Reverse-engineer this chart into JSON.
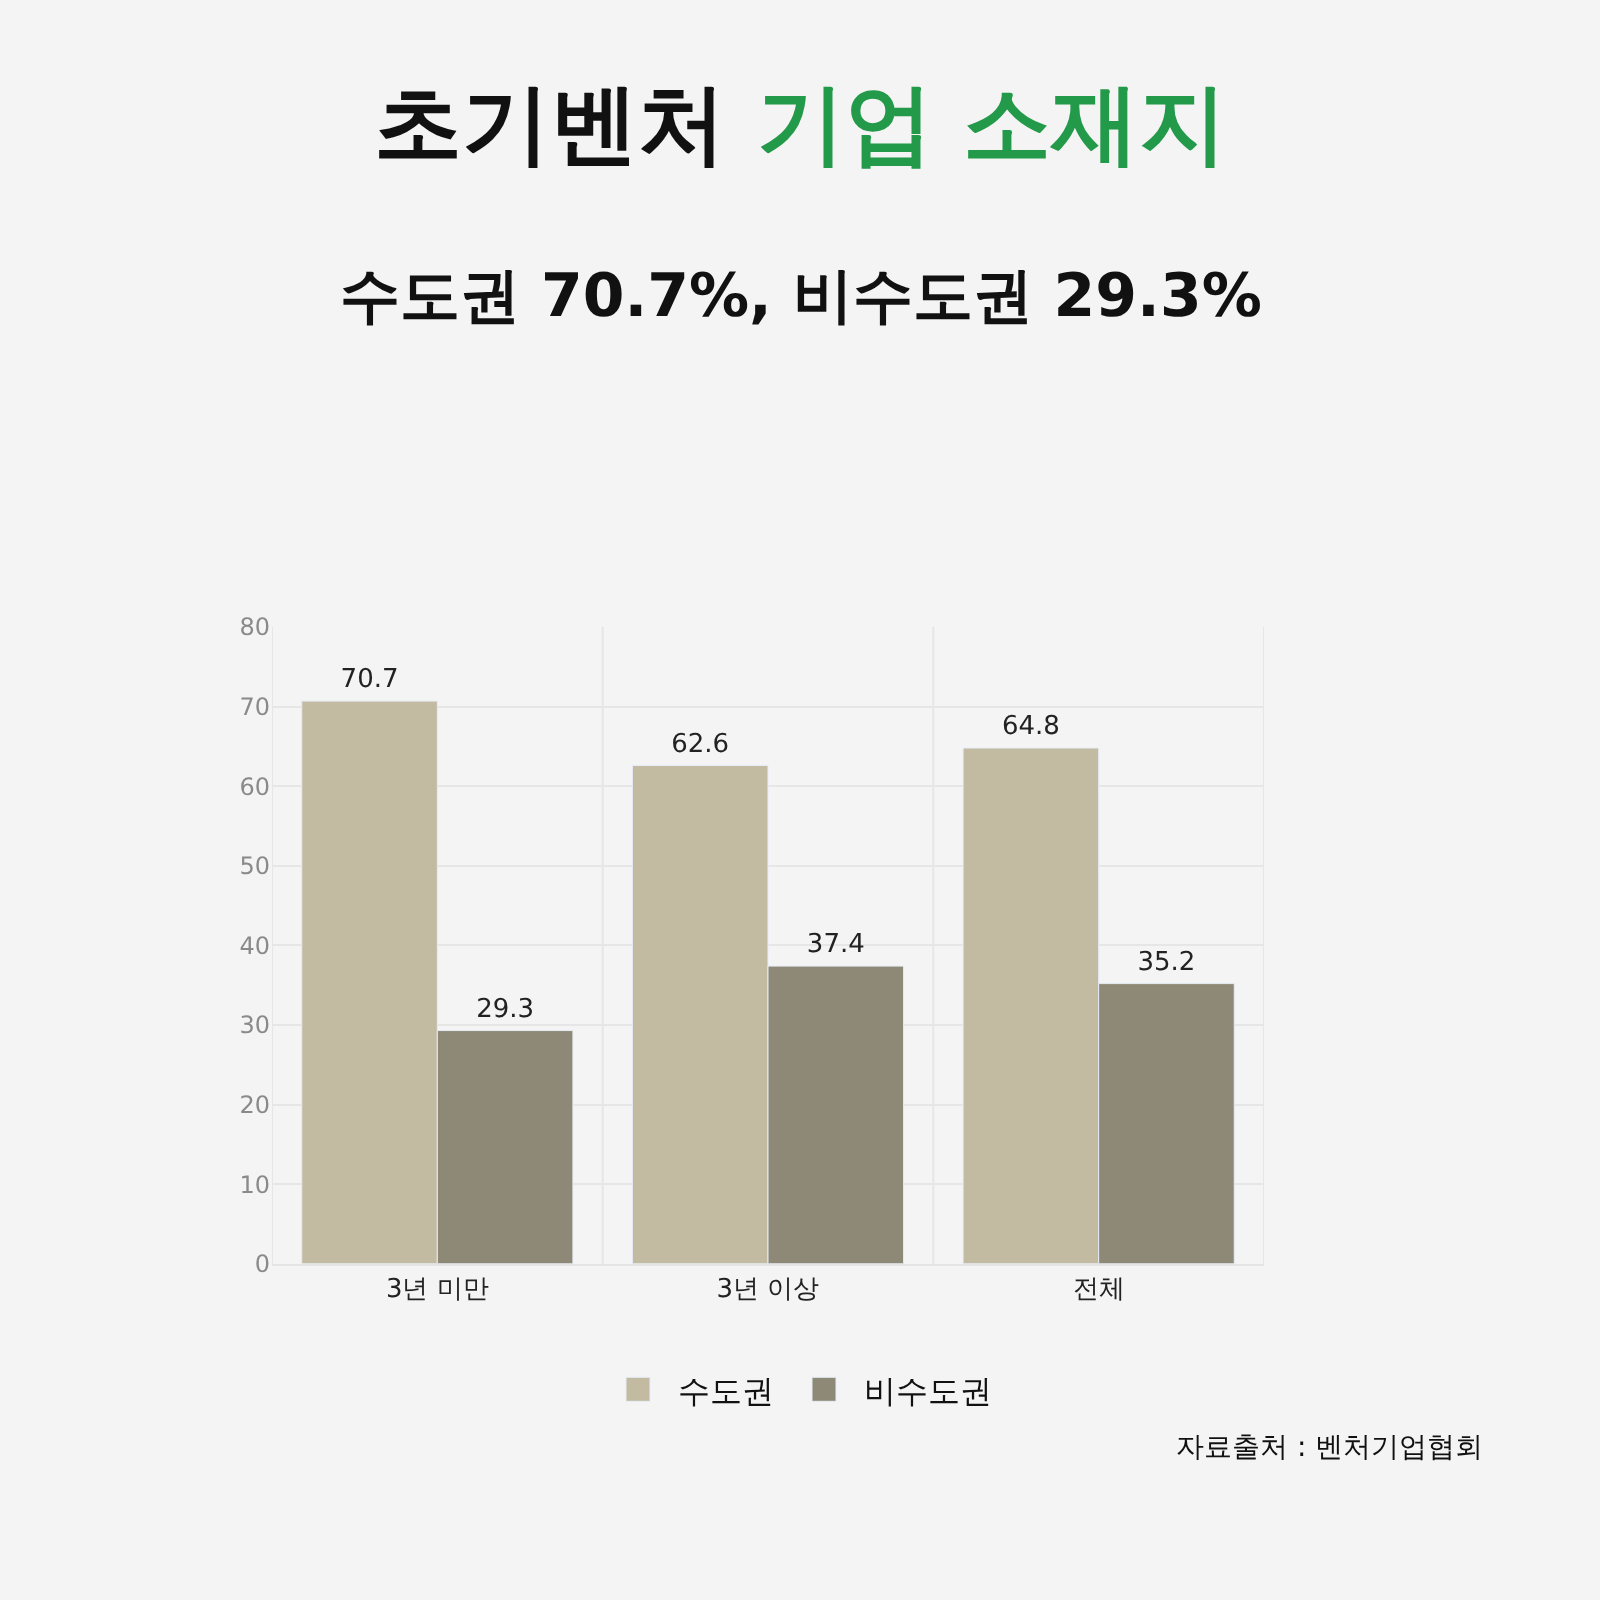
{
  "chart_data": {
    "type": "bar",
    "title": "초기벤처 기업 소재지",
    "subtitle": "수도권 70.7%, 비수도권 29.3%",
    "categories": [
      "3년 미만",
      "3년 이상",
      "전체"
    ],
    "series": [
      {
        "name": "수도권",
        "color": "#c3baa2",
        "values": [
          70.7,
          62.6,
          64.8
        ]
      },
      {
        "name": "비수도권",
        "color": "#8e8977",
        "values": [
          29.3,
          37.4,
          35.2
        ]
      }
    ],
    "ylim": [
      0,
      80
    ],
    "yticks": [
      0,
      10,
      20,
      30,
      40,
      50,
      60,
      70,
      80
    ],
    "grid": true,
    "legend": "bottom",
    "data_labels": true,
    "annotations": [
      "자료출처 : 벤처기업협회"
    ]
  }
}
